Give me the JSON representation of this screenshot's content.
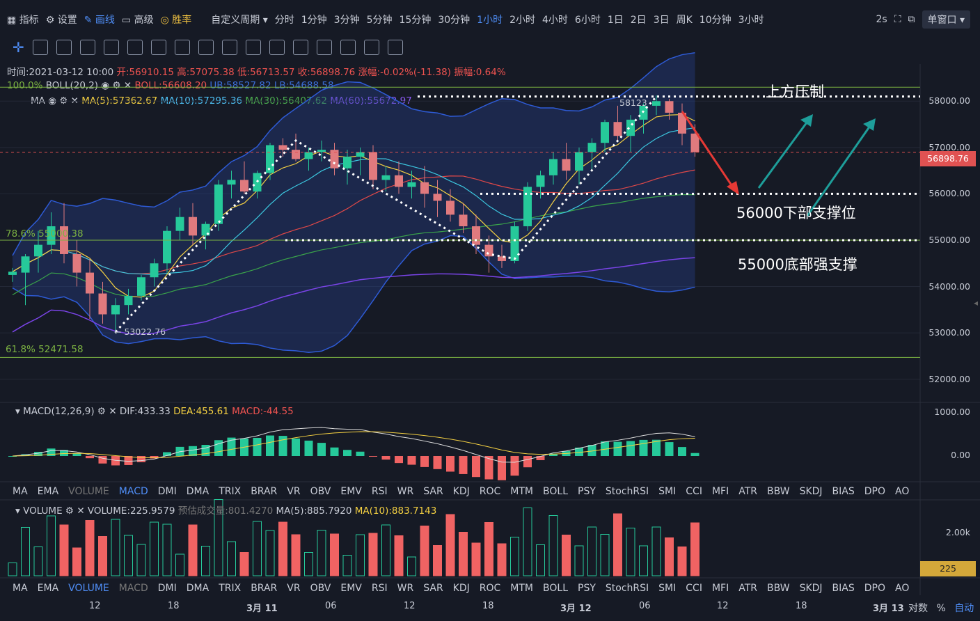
{
  "top_menu": {
    "indicators": "指标",
    "settings": "设置",
    "draw": "画线",
    "advanced": "高级",
    "winrate": "胜率",
    "custom_period": "自定义周期",
    "periods": [
      "分时",
      "1分钟",
      "3分钟",
      "5分钟",
      "15分钟",
      "30分钟",
      "1小时",
      "2小时",
      "4小时",
      "6小时",
      "1日",
      "2日",
      "3日",
      "周K",
      "10分钟",
      "3小时"
    ],
    "active_period": "1小时",
    "refresh": "2s",
    "window": "单窗口"
  },
  "ohlc": {
    "time": "时间:2021-03-12 10:00",
    "open": "开:56910.15",
    "high": "高:57075.38",
    "low": "低:56713.57",
    "close": "收:56898.76",
    "change": "涨幅:-0.02%(-11.38)",
    "amplitude": "振幅:0.64%"
  },
  "boll": {
    "name": "BOLL(20,2)",
    "mid": "BOLL:56608.20",
    "ub": "UB:58527.82",
    "lb": "LB:54688.58"
  },
  "ma": {
    "name": "MA",
    "ma5": "MA(5):57362.67",
    "ma10": "MA(10):57295.36",
    "ma30": "MA(30):56407.62",
    "ma60": "MA(60):55672.97"
  },
  "fib": {
    "f100": "100.0%",
    "f786": "78.6% 5",
    "f786b": ".38",
    "f618": "61.8% 52471.58"
  },
  "annotations": {
    "top": "上方压制",
    "s56": "56000下部支撑位",
    "s55": "55000底部强支撑",
    "low_mark": "53022.76",
    "high_mark": "58123"
  },
  "price_axis": [
    "58000.00",
    "57000.00",
    "56000.00",
    "55000.00",
    "54000.00",
    "53000.00",
    "52000.00"
  ],
  "last_price": "56898.76",
  "macd": {
    "name": "MACD(12,26,9)",
    "dif": "DIF:433.33",
    "dea": "DEA:455.61",
    "macd": "MACD:-44.55",
    "axis": [
      "1000.00",
      "0.00"
    ]
  },
  "volume": {
    "name": "VOLUME",
    "vol": "VOLUME:225.9579",
    "est": "预估成交量:801.4270",
    "ma5": "MA(5):885.7920",
    "ma10": "MA(10):883.7143",
    "axis": [
      "2.00k"
    ],
    "current": "225"
  },
  "indicator_tabs": [
    "MA",
    "EMA",
    "VOLUME",
    "MACD",
    "DMI",
    "DMA",
    "TRIX",
    "BRAR",
    "VR",
    "OBV",
    "EMV",
    "RSI",
    "WR",
    "SAR",
    "KDJ",
    "ROC",
    "MTM",
    "BOLL",
    "PSY",
    "StochRSI",
    "SMI",
    "CCI",
    "MFI",
    "ATR",
    "BBW",
    "SKDJ",
    "BIAS",
    "DPO",
    "AO"
  ],
  "time_axis": [
    "12",
    "18",
    "3月 11",
    "06",
    "12",
    "18",
    "3月 12",
    "06",
    "12",
    "18",
    "3月 13"
  ],
  "bottom_right": {
    "log": "对数",
    "pct": "%",
    "auto": "自动"
  },
  "chart_data": {
    "type": "candlestick",
    "ylim": [
      51500,
      58800
    ],
    "candles": [
      [
        54250,
        54400,
        54100,
        54320
      ],
      [
        54300,
        54700,
        53600,
        54650
      ],
      [
        54650,
        55200,
        54300,
        54900
      ],
      [
        54900,
        55600,
        54700,
        55300
      ],
      [
        55300,
        55800,
        54500,
        54700
      ],
      [
        54700,
        55000,
        54000,
        54300
      ],
      [
        54300,
        54600,
        53300,
        53850
      ],
      [
        53850,
        54100,
        53200,
        53400
      ],
      [
        53400,
        53750,
        53020,
        53600
      ],
      [
        53600,
        53950,
        53400,
        53800
      ],
      [
        53800,
        54250,
        53700,
        54200
      ],
      [
        54200,
        54600,
        54000,
        54500
      ],
      [
        54500,
        55300,
        54300,
        55200
      ],
      [
        55200,
        55700,
        55000,
        55500
      ],
      [
        55500,
        55800,
        54900,
        55100
      ],
      [
        55100,
        55400,
        54800,
        55350
      ],
      [
        55350,
        56300,
        55200,
        56200
      ],
      [
        56200,
        56500,
        55900,
        56300
      ],
      [
        56300,
        56700,
        56000,
        56050
      ],
      [
        56050,
        56500,
        55900,
        56450
      ],
      [
        56450,
        57100,
        56300,
        57050
      ],
      [
        57050,
        57200,
        56800,
        56950
      ],
      [
        56950,
        57300,
        56700,
        56750
      ],
      [
        56750,
        57000,
        56500,
        56900
      ],
      [
        56900,
        57150,
        56700,
        56950
      ],
      [
        56950,
        57100,
        56400,
        56550
      ],
      [
        56550,
        56950,
        56200,
        56800
      ],
      [
        56800,
        57000,
        56400,
        56900
      ],
      [
        56900,
        57050,
        56100,
        56300
      ],
      [
        56300,
        56600,
        56050,
        56400
      ],
      [
        56400,
        56700,
        56000,
        56150
      ],
      [
        56150,
        56500,
        55900,
        56250
      ],
      [
        56250,
        56600,
        55700,
        56000
      ],
      [
        56000,
        56300,
        55500,
        55850
      ],
      [
        55850,
        56100,
        55400,
        55550
      ],
      [
        55550,
        55800,
        55150,
        55300
      ],
      [
        55300,
        55550,
        54700,
        54900
      ],
      [
        54900,
        55100,
        54300,
        54650
      ],
      [
        54650,
        54900,
        54400,
        54550
      ],
      [
        54550,
        55400,
        54500,
        55300
      ],
      [
        55300,
        56250,
        55200,
        56150
      ],
      [
        56150,
        56500,
        55900,
        56400
      ],
      [
        56400,
        56900,
        56200,
        56750
      ],
      [
        56750,
        57100,
        56300,
        56500
      ],
      [
        56500,
        57000,
        56200,
        56900
      ],
      [
        56900,
        57200,
        56500,
        57100
      ],
      [
        57100,
        57600,
        56900,
        57550
      ],
      [
        57550,
        57900,
        57150,
        57250
      ],
      [
        57250,
        57700,
        56900,
        57600
      ],
      [
        57600,
        57950,
        57300,
        57900
      ],
      [
        57900,
        58123,
        57700,
        58000
      ],
      [
        58000,
        58050,
        57600,
        57750
      ],
      [
        57750,
        57950,
        57050,
        57300
      ],
      [
        57300,
        57500,
        56800,
        56900
      ]
    ]
  }
}
